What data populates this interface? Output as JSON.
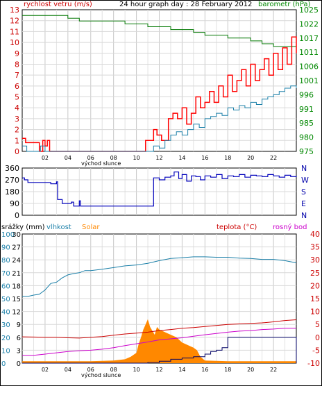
{
  "chart_data": [
    {
      "type": "line",
      "title": "24 hour graph day : 28 February 2012",
      "ylabel_left": "rychlost vetru (m/s)",
      "ylabel_right": "barometr (hPa)",
      "x_ticks": [
        "02",
        "04",
        "06",
        "08",
        "10",
        "12",
        "14",
        "16",
        "18",
        "20",
        "22"
      ],
      "x_annotation": "východ slunce",
      "xlim": [
        0,
        24
      ],
      "ylim_left": [
        0,
        13
      ],
      "left_ticks": [
        "0",
        "1",
        "2",
        "3",
        "4",
        "5",
        "6",
        "7",
        "8",
        "9",
        "10",
        "11",
        "12",
        "13"
      ],
      "ylim_right": [
        975,
        1025
      ],
      "right_ticks": [
        "975",
        "980",
        "985",
        "991",
        "996",
        "1001",
        "1006",
        "1011",
        "1017",
        "1022",
        "1025"
      ],
      "grid": true,
      "series": [
        {
          "color": "#007700",
          "axis": "right",
          "x": [
            0,
            1.5,
            3,
            4,
            5,
            6,
            7,
            8,
            9,
            10,
            11,
            12,
            13,
            14,
            15,
            16,
            17,
            18,
            19,
            20,
            21,
            22,
            23,
            24
          ],
          "values": [
            1023,
            1023,
            1023,
            1022,
            1021,
            1021,
            1021,
            1021,
            1020,
            1020,
            1019,
            1019,
            1018,
            1018,
            1017,
            1016,
            1016,
            1015,
            1015,
            1014,
            1013,
            1012,
            1012,
            1012
          ]
        },
        {
          "color": "#ff0000",
          "axis": "left",
          "x": [
            0,
            0.3,
            1.5,
            1.8,
            2,
            2.2,
            2.4,
            10.5,
            10.8,
            11.5,
            11.8,
            12.2,
            12.8,
            13.2,
            13.6,
            14,
            14.4,
            14.8,
            15.2,
            15.6,
            16,
            16.4,
            16.8,
            17.2,
            17.6,
            18,
            18.4,
            18.8,
            19.2,
            19.6,
            20,
            20.4,
            20.8,
            21.2,
            21.6,
            22,
            22.4,
            22.8,
            23.2,
            23.6,
            24
          ],
          "values": [
            1.2,
            0.8,
            0,
            1.0,
            0.5,
            1.0,
            0,
            0,
            1.0,
            2.0,
            1.5,
            1.0,
            3.0,
            3.5,
            3.0,
            4.0,
            2.5,
            3.5,
            5.0,
            4.0,
            4.5,
            5.5,
            4.5,
            6.0,
            5.0,
            7.0,
            5.5,
            6.5,
            7.5,
            6.0,
            8.0,
            6.5,
            7.5,
            8.5,
            7.0,
            9.0,
            7.5,
            9.5,
            8.0,
            10.5,
            9.0
          ]
        },
        {
          "color": "#1a7fa8",
          "axis": "left",
          "x": [
            0,
            0.4,
            0.8,
            1.6,
            2,
            2.4,
            10.8,
            11.5,
            12,
            12.5,
            13,
            13.5,
            14,
            14.5,
            15,
            15.5,
            16,
            16.5,
            17,
            17.5,
            18,
            18.5,
            19,
            19.5,
            20,
            20.5,
            21,
            21.5,
            22,
            22.5,
            23,
            23.5,
            24
          ],
          "values": [
            0.5,
            0,
            0,
            0.5,
            0,
            0,
            0,
            0.5,
            0.3,
            1.0,
            1.5,
            1.8,
            1.5,
            2.0,
            2.5,
            2.2,
            3.0,
            3.2,
            3.5,
            3.3,
            4.0,
            3.8,
            4.2,
            4.0,
            4.5,
            4.3,
            4.8,
            5.0,
            5.2,
            5.5,
            5.8,
            6.0,
            5.8
          ]
        }
      ]
    },
    {
      "type": "line",
      "title": "",
      "ylabel_left": "",
      "ylabel_right": "",
      "xlim": [
        0,
        24
      ],
      "ylim_left": [
        0,
        360
      ],
      "left_ticks": [
        "0",
        "90",
        "180",
        "270",
        "360"
      ],
      "right_ticks": [
        "N",
        "E",
        "S",
        "W",
        "N"
      ],
      "grid": true,
      "series": [
        {
          "color": "#0000bb",
          "axis": "left",
          "x": [
            0,
            0.2,
            0.5,
            2,
            2.5,
            3,
            3.1,
            3.5,
            4,
            4.3,
            4.5,
            5,
            5.1,
            6,
            8,
            10,
            11,
            11.4,
            11.5,
            12,
            12.5,
            13,
            13.3,
            13.7,
            14,
            14.4,
            14.8,
            15.2,
            15.6,
            16,
            16.5,
            17,
            17.5,
            18,
            18.5,
            19,
            19.5,
            20,
            20.5,
            21,
            21.5,
            22,
            22.5,
            23,
            23.5,
            24
          ],
          "values": [
            285,
            270,
            250,
            250,
            240,
            255,
            120,
            90,
            90,
            100,
            70,
            110,
            70,
            70,
            70,
            70,
            70,
            70,
            285,
            270,
            290,
            300,
            330,
            280,
            310,
            260,
            300,
            295,
            270,
            300,
            290,
            310,
            280,
            300,
            295,
            310,
            290,
            305,
            300,
            295,
            310,
            300,
            290,
            305,
            295,
            300
          ]
        }
      ]
    },
    {
      "type": "line",
      "title": "",
      "ylabel_left": "srážky (mm)",
      "ylabel_left2": "vlhkost",
      "ylabel_left3": "Solar",
      "ylabel_right": "teplota (°C)",
      "ylabel_right2": "rosný bod",
      "x_ticks": [
        "02",
        "04",
        "06",
        "08",
        "10",
        "12",
        "14",
        "16",
        "18",
        "20",
        "22"
      ],
      "x_annotation": "východ slunce",
      "xlim": [
        0,
        24
      ],
      "ylim_rain": [
        0,
        100
      ],
      "rain_ticks": [
        "0",
        "10",
        "20",
        "30",
        "40",
        "50",
        "60",
        "70",
        "80",
        "90",
        "100"
      ],
      "ylim_humidity": [
        0,
        30
      ],
      "humidity_ticks": [
        "0",
        "3",
        "6",
        "9",
        "12",
        "15",
        "18",
        "21",
        "24",
        "27",
        "30"
      ],
      "ylim_temp": [
        -10,
        40
      ],
      "temp_ticks": [
        "-10",
        "-5",
        "0",
        "5",
        "10",
        "15",
        "20",
        "25",
        "30",
        "35",
        "40"
      ],
      "grid": true,
      "series": [
        {
          "name": "vlhkost",
          "color": "#1a7fa8",
          "axis": "humidity",
          "x": [
            0,
            0.5,
            1,
            1.5,
            2,
            2.5,
            3,
            3.5,
            4,
            4.5,
            5,
            5.5,
            6,
            7,
            8,
            9,
            10,
            11,
            12,
            13,
            14,
            15,
            16,
            17,
            18,
            19,
            20,
            21,
            22,
            23,
            24
          ],
          "values": [
            15.5,
            15.5,
            15.8,
            16.0,
            17.0,
            18.5,
            18.8,
            19.8,
            20.5,
            20.8,
            21.0,
            21.5,
            21.5,
            21.8,
            22.2,
            22.6,
            22.8,
            23.2,
            23.8,
            24.3,
            24.5,
            24.7,
            24.7,
            24.6,
            24.6,
            24.4,
            24.3,
            24.1,
            24.1,
            23.8,
            23.3
          ]
        },
        {
          "name": "teplota",
          "color": "#cc0000",
          "axis": "temp",
          "x": [
            0,
            1,
            2,
            3,
            4,
            5,
            6,
            7,
            8,
            9,
            10,
            11,
            12,
            13,
            14,
            15,
            16,
            17,
            18,
            19,
            20,
            21,
            22,
            23,
            24
          ],
          "values": [
            0.2,
            0.1,
            0.0,
            0.0,
            -0.2,
            -0.3,
            0.0,
            0.3,
            0.8,
            1.3,
            1.6,
            2.0,
            2.6,
            3.0,
            3.5,
            3.8,
            4.2,
            4.6,
            5.0,
            5.2,
            5.4,
            5.6,
            6.0,
            6.5,
            6.8
          ]
        },
        {
          "name": "rosný bod",
          "color": "#cc00cc",
          "axis": "temp",
          "x": [
            0,
            1,
            2,
            3,
            4,
            5,
            6,
            7,
            8,
            9,
            10,
            11,
            12,
            13,
            14,
            15,
            16,
            17,
            18,
            19,
            20,
            21,
            22,
            23,
            24
          ],
          "values": [
            -7.0,
            -7.0,
            -6.5,
            -6.0,
            -5.5,
            -5.2,
            -5.0,
            -4.6,
            -4.0,
            -3.2,
            -2.5,
            -1.8,
            -1.0,
            -0.6,
            -0.2,
            0.4,
            1.0,
            1.5,
            2.0,
            2.4,
            2.6,
            3.0,
            3.2,
            3.5,
            3.5
          ]
        },
        {
          "name": "srážky",
          "color": "#000066",
          "axis": "rain",
          "x": [
            0,
            10.5,
            11,
            12,
            13,
            14,
            15,
            16,
            16.5,
            17,
            17.5,
            18,
            19,
            20,
            21,
            22,
            23,
            23.9,
            24
          ],
          "values": [
            0,
            0,
            0.5,
            1.5,
            3,
            4,
            5,
            7,
            9,
            10,
            12,
            20,
            20,
            20,
            20,
            20,
            20,
            20,
            0
          ]
        },
        {
          "name": "Solar",
          "color": "#ff8800",
          "axis": "rain",
          "x": [
            0,
            2,
            6,
            8,
            9,
            9.5,
            10,
            10.2,
            10.4,
            10.6,
            10.8,
            11,
            11.2,
            11.4,
            11.6,
            11.8,
            12,
            12.5,
            13,
            13.5,
            14,
            14.5,
            15,
            15.3,
            15.6,
            16,
            18,
            20,
            22,
            24
          ],
          "values": [
            1.5,
            1.5,
            1.5,
            2,
            3,
            5,
            8,
            15,
            20,
            26,
            30,
            34,
            28,
            25,
            22,
            28,
            26,
            24,
            22,
            20,
            16,
            14,
            12,
            10,
            5,
            2,
            1.5,
            1.5,
            1.5,
            1.5
          ]
        }
      ]
    }
  ]
}
